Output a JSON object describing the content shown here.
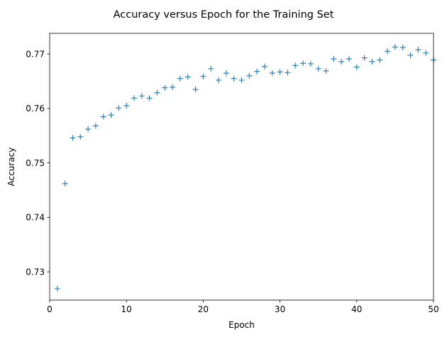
{
  "chart_data": {
    "type": "scatter",
    "title": "Accuracy versus Epoch for the Training Set",
    "xlabel": "Epoch",
    "ylabel": "Accuracy",
    "xlim": [
      0,
      50
    ],
    "ylim": [
      0.7248,
      0.7738
    ],
    "xticks": [
      0,
      10,
      20,
      30,
      40,
      50
    ],
    "yticks": [
      0.73,
      0.74,
      0.75,
      0.76,
      0.77
    ],
    "ytick_labels": [
      "0.73",
      "0.74",
      "0.75",
      "0.76",
      "0.77"
    ],
    "marker": "+",
    "color": "#1f77b4",
    "grid": false,
    "x": [
      1,
      2,
      3,
      4,
      5,
      6,
      7,
      8,
      9,
      10,
      11,
      12,
      13,
      14,
      15,
      16,
      17,
      18,
      19,
      20,
      21,
      22,
      23,
      24,
      25,
      26,
      27,
      28,
      29,
      30,
      31,
      32,
      33,
      34,
      35,
      36,
      37,
      38,
      39,
      40,
      41,
      42,
      43,
      44,
      45,
      46,
      47,
      48,
      49,
      50
    ],
    "y": [
      0.7269,
      0.7462,
      0.7546,
      0.7548,
      0.7562,
      0.7568,
      0.7585,
      0.7588,
      0.7601,
      0.7605,
      0.7619,
      0.7623,
      0.7619,
      0.7629,
      0.7638,
      0.7639,
      0.7655,
      0.7658,
      0.7635,
      0.7659,
      0.7673,
      0.7652,
      0.7665,
      0.7655,
      0.7652,
      0.766,
      0.7668,
      0.7677,
      0.7665,
      0.7667,
      0.7666,
      0.7679,
      0.7683,
      0.7682,
      0.7673,
      0.7669,
      0.7691,
      0.7686,
      0.7691,
      0.7676,
      0.7693,
      0.7686,
      0.7689,
      0.7705,
      0.7713,
      0.7712,
      0.7698,
      0.7708,
      0.7702,
      0.7689
    ]
  }
}
